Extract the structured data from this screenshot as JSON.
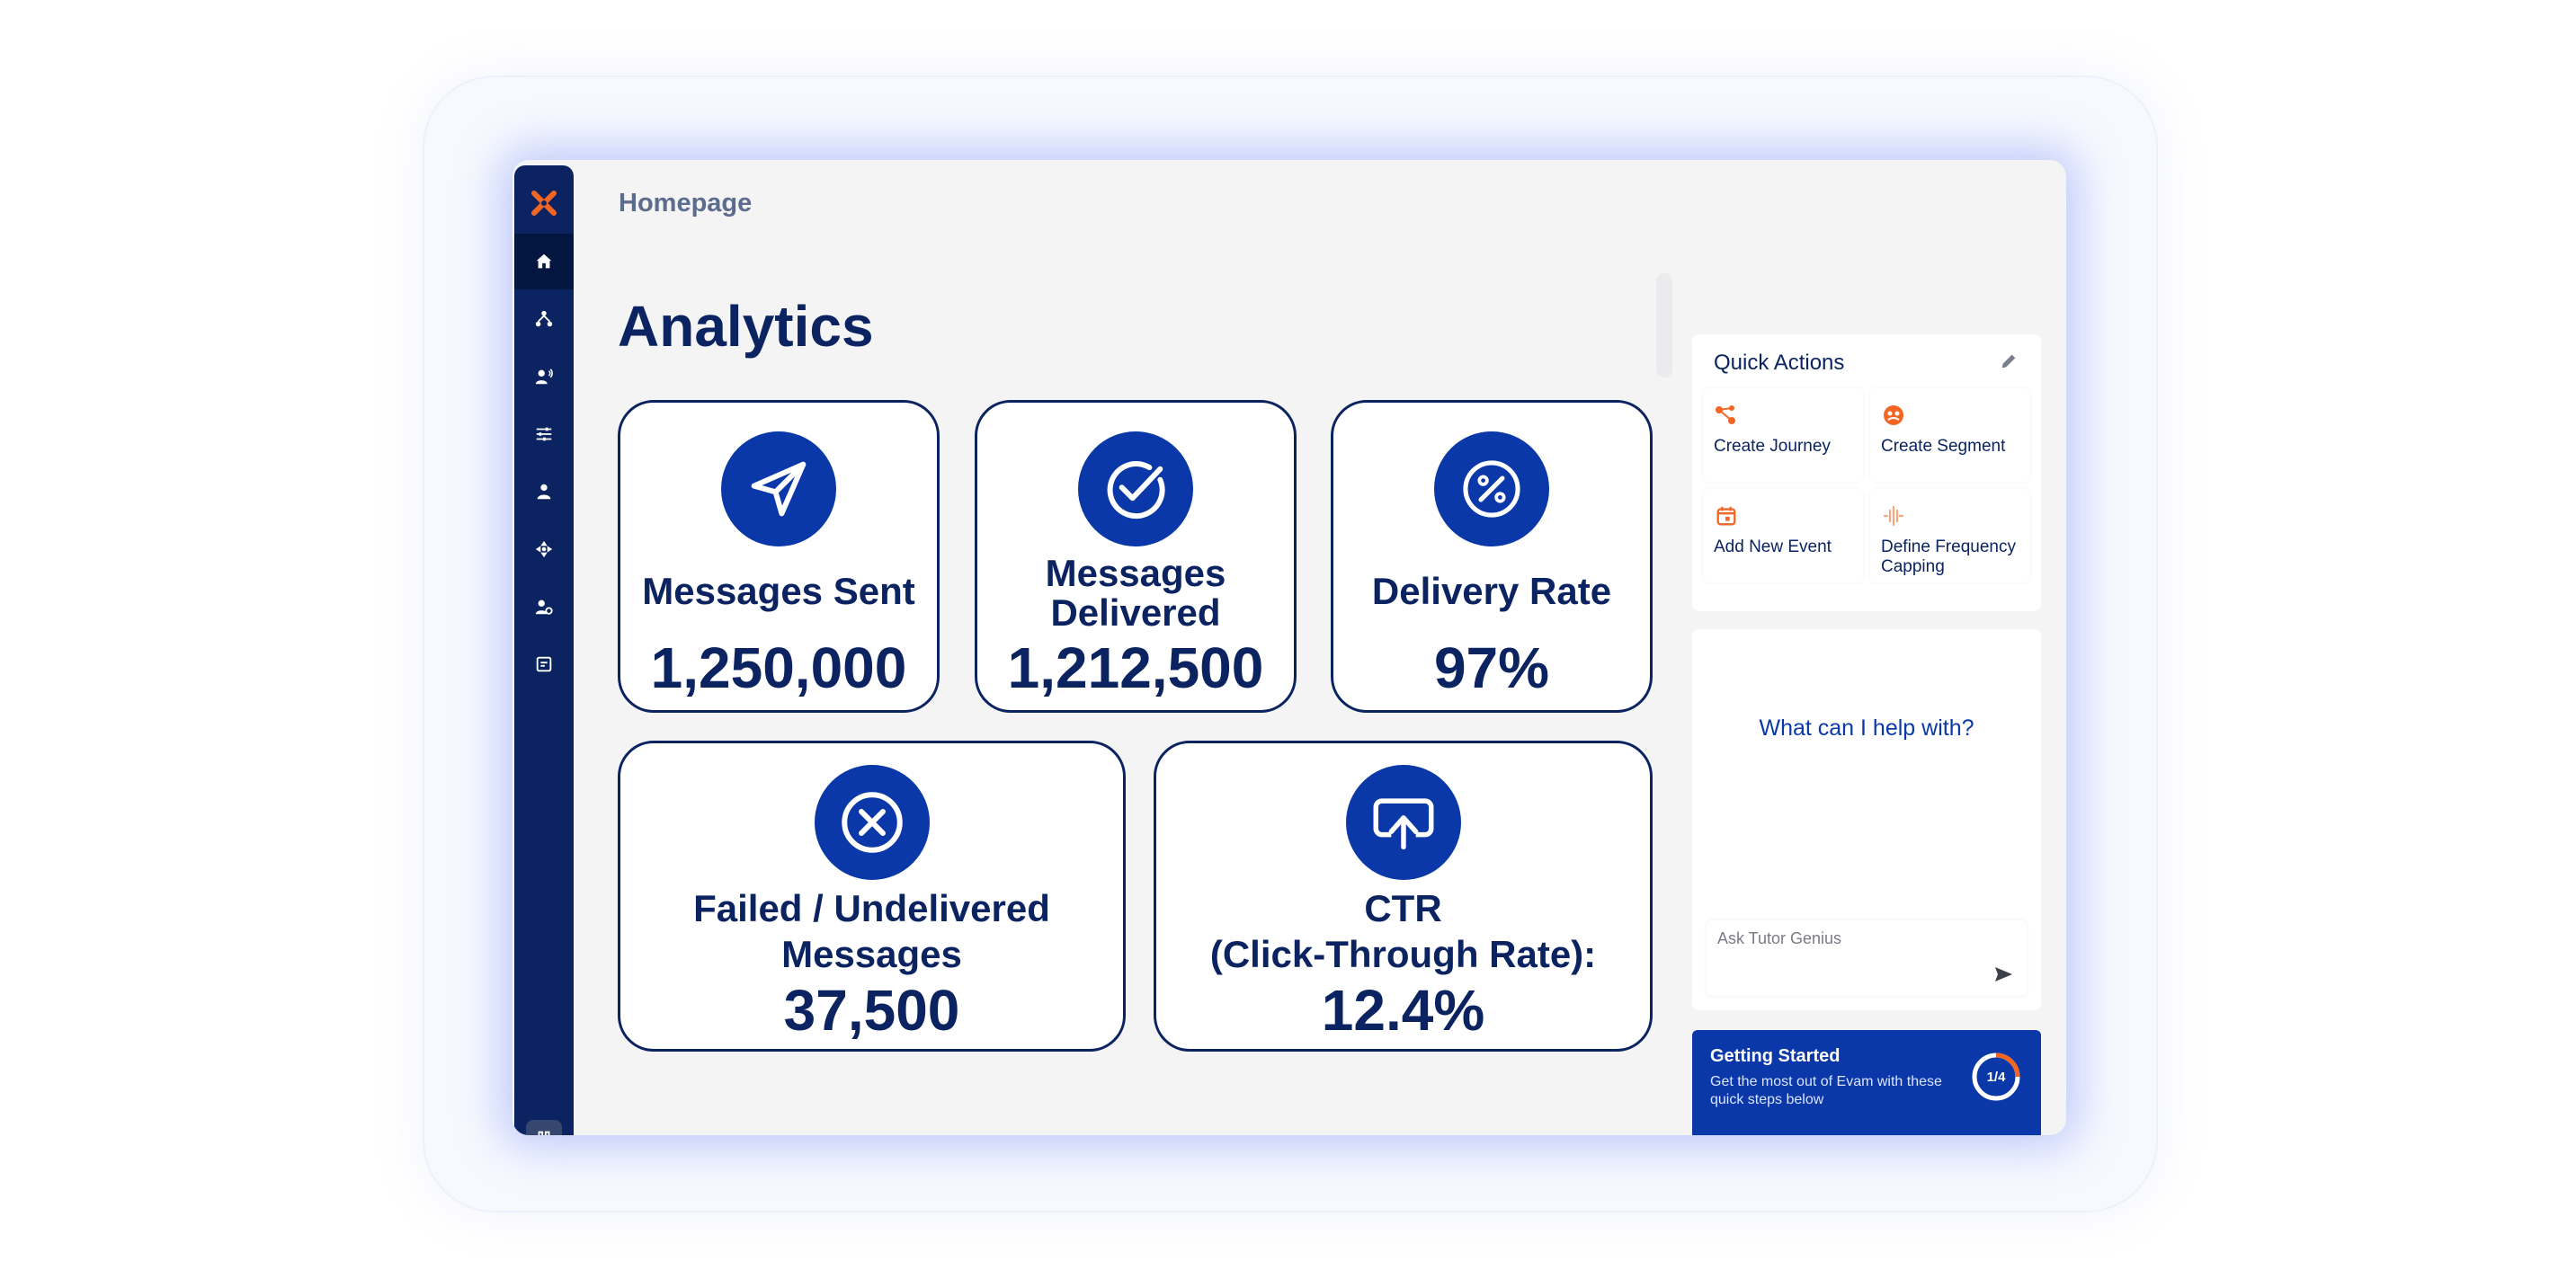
{
  "page": {
    "breadcrumb": "Homepage",
    "title": "Analytics"
  },
  "sidebar": {
    "logo": "x-logo-icon",
    "items": [
      {
        "icon": "home-icon",
        "active": true
      },
      {
        "icon": "hierarchy-icon",
        "active": false
      },
      {
        "icon": "user-broadcast-icon",
        "active": false
      },
      {
        "icon": "sliders-icon",
        "active": false
      },
      {
        "icon": "user-flask-icon",
        "active": false
      },
      {
        "icon": "target-icon",
        "active": false
      },
      {
        "icon": "user-settings-icon",
        "active": false
      },
      {
        "icon": "reports-icon",
        "active": false
      }
    ],
    "bottom_icon": "collapse-icon"
  },
  "metrics": [
    {
      "label": "Messages Sent",
      "value": "1,250,000",
      "icon": "paper-plane-icon"
    },
    {
      "label": "Messages Delivered",
      "value": "1,212,500",
      "icon": "check-circle-icon"
    },
    {
      "label": "Delivery Rate",
      "value": "97%",
      "icon": "percent-icon"
    },
    {
      "label": "Failed / Undelivered Messages",
      "value": "37,500",
      "icon": "x-circle-icon"
    },
    {
      "label_line1": "CTR",
      "label_line2": "(Click-Through Rate):",
      "value": "12.4%",
      "icon": "cloud-upload-icon"
    }
  ],
  "quick_actions": {
    "title": "Quick Actions",
    "items": [
      {
        "label": "Create Journey",
        "icon": "journey-icon"
      },
      {
        "label": "Create Segment",
        "icon": "segment-icon"
      },
      {
        "label": "Add New Event",
        "icon": "calendar-icon"
      },
      {
        "label": "Define Frequency Capping",
        "icon": "frequency-icon"
      }
    ]
  },
  "chat": {
    "prompt": "What can I help with?",
    "placeholder": "Ask Tutor Genius"
  },
  "getting_started": {
    "title": "Getting Started",
    "description": "Get the most out of Evam with these quick steps below",
    "progress_text": "1/4",
    "progress_fraction": 0.25
  },
  "colors": {
    "navy": "#0b2461",
    "brand_blue": "#0a38a8",
    "accent_orange": "#f26522"
  }
}
